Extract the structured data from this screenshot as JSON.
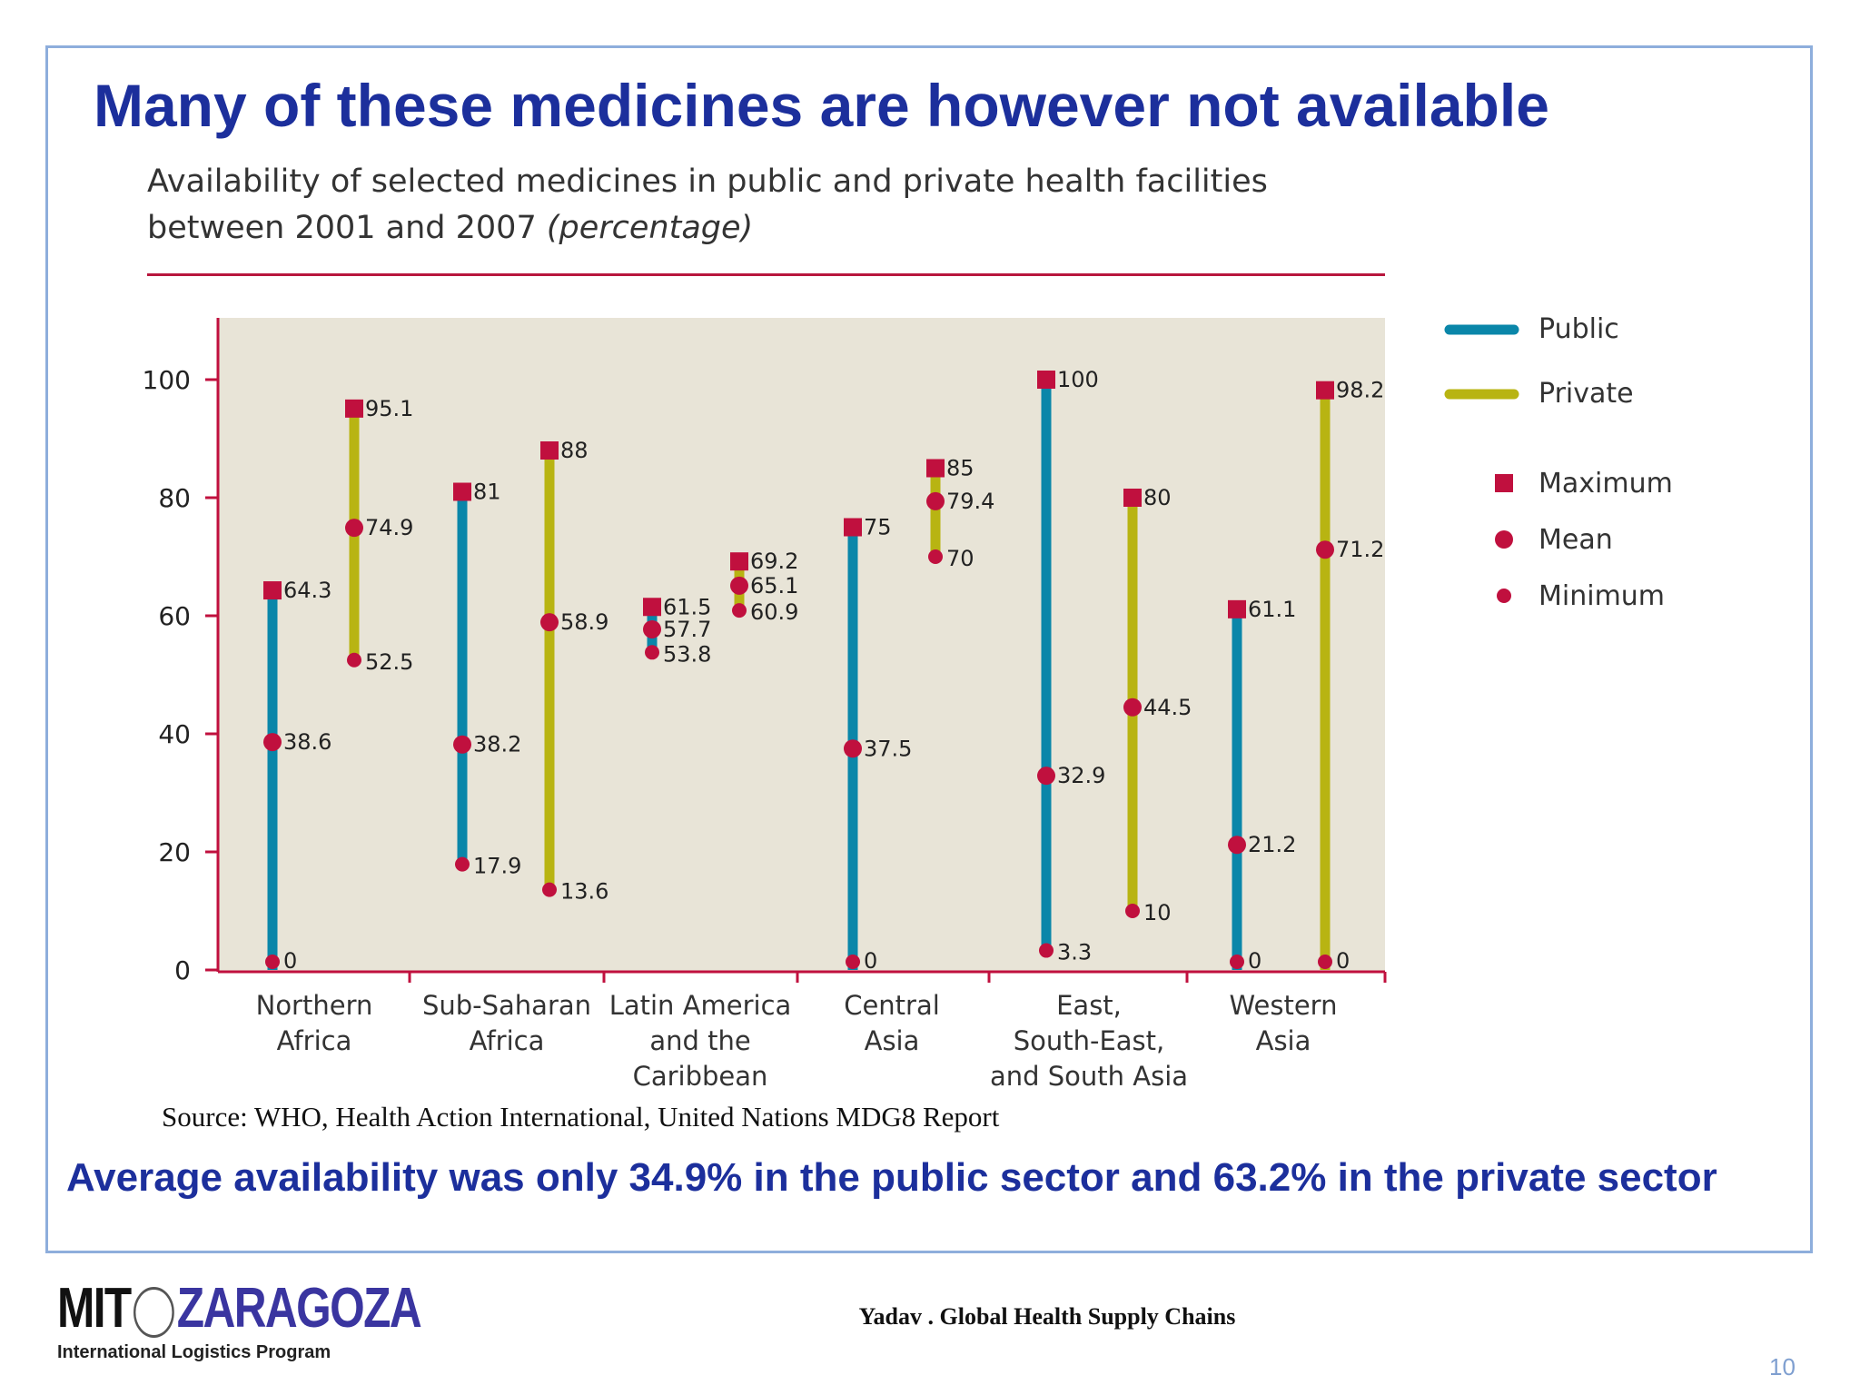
{
  "slide": {
    "title": "Many of these medicines are however not available",
    "source": "Source: WHO, Health Action International, United Nations MDG8 Report",
    "summary": "Average availability was only 34.9% in the public sector and 63.2% in the private sector",
    "footer": "Yadav . Global Health Supply Chains",
    "page_number": "10",
    "logo": {
      "mit": "MIT",
      "zaragoza": "ZARAGOZA",
      "subtitle": "International Logistics Program"
    }
  },
  "chart_data": {
    "type": "range",
    "title_line1": "Availability of selected medicines in public and private health facilities",
    "title_line2": "between 2001 and 2007",
    "title_unit": "(percentage)",
    "ylim": [
      0,
      100
    ],
    "yticks": [
      "0",
      "20",
      "40",
      "60",
      "80",
      "100"
    ],
    "categories": [
      [
        "Northern",
        "Africa"
      ],
      [
        "Sub-Saharan",
        "Africa"
      ],
      [
        "Latin America",
        "and the",
        "Caribbean"
      ],
      [
        "Central",
        "Asia"
      ],
      [
        "East,",
        "South-East,",
        "and South Asia"
      ],
      [
        "Western",
        "Asia"
      ]
    ],
    "series": [
      {
        "name": "Public",
        "color": "#0a86a9",
        "max": [
          64.3,
          81,
          61.5,
          75,
          100,
          61.1
        ],
        "mean": [
          38.6,
          38.2,
          57.7,
          37.5,
          32.9,
          21.2
        ],
        "min": [
          0,
          17.9,
          53.8,
          0,
          3.3,
          0
        ]
      },
      {
        "name": "Private",
        "color": "#b8b412",
        "max": [
          95.1,
          88,
          69.2,
          85,
          80,
          98.2
        ],
        "mean": [
          74.9,
          58.9,
          65.1,
          79.4,
          44.5,
          71.2
        ],
        "min": [
          52.5,
          13.6,
          60.9,
          70,
          10,
          0
        ]
      }
    ],
    "legend": {
      "public": "Public",
      "private": "Private",
      "maximum": "Maximum",
      "mean": "Mean",
      "minimum": "Minimum",
      "placement": "right"
    },
    "marker_color": "#c0103e",
    "plot_background": "#e8e4d7",
    "axis_color": "#c0103e"
  }
}
